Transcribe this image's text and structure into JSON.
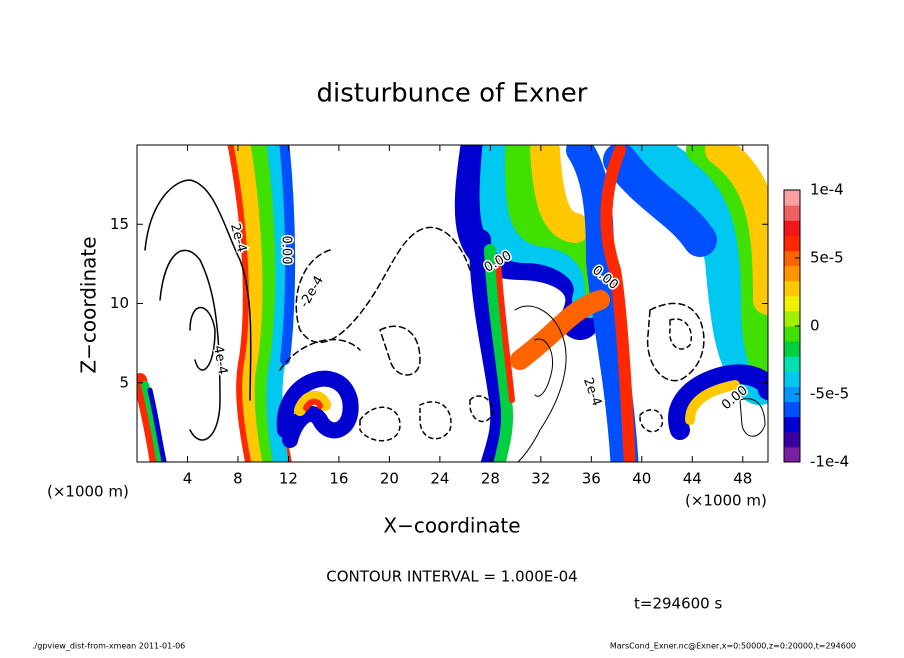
{
  "chart_data": {
    "type": "contour",
    "title": "disturbunce of Exner",
    "xlabel": "X−coordinate",
    "ylabel": "Z−coordinate",
    "x_unit_label": "(×1000 m)",
    "xlim": [
      0,
      50
    ],
    "ylim": [
      0,
      20
    ],
    "xticks": [
      4,
      8,
      12,
      16,
      20,
      24,
      28,
      32,
      36,
      40,
      44,
      48
    ],
    "yticks": [
      5,
      10,
      15
    ],
    "clim": [
      -0.0001,
      0.0001
    ],
    "cticks": [
      {
        "value": 0.0001,
        "label": "1e-4"
      },
      {
        "value": 5e-05,
        "label": "5e-5"
      },
      0,
      {
        "value": -5e-05,
        "label": "-5e-5"
      },
      {
        "value": -0.0001,
        "label": "-1e-4"
      }
    ],
    "colormap": [
      "#7b1fa2",
      "#3a00a0",
      "#0000d0",
      "#0050ff",
      "#0096ff",
      "#00c8f0",
      "#00e0b0",
      "#00d040",
      "#40e000",
      "#a0f000",
      "#f0f000",
      "#ffc800",
      "#ff9600",
      "#ff6400",
      "#ff2800",
      "#f01818",
      "#f06060",
      "#f8a0a0"
    ],
    "contour_labels": [
      "2e-4",
      "0.00",
      "-2e-4",
      "4e-4",
      "0.00",
      "0.00",
      "2e-4",
      "0.00"
    ],
    "contour_interval": "CONTOUR INTERVAL = 1.000E-04",
    "time_label": "t=294600 s",
    "footer_left": "./gpview_dist-from-xmean  2011-01-06",
    "footer_right": "MarsCond_Exner.nc@Exner,x=0:50000,z=0:20000,t=294600"
  }
}
